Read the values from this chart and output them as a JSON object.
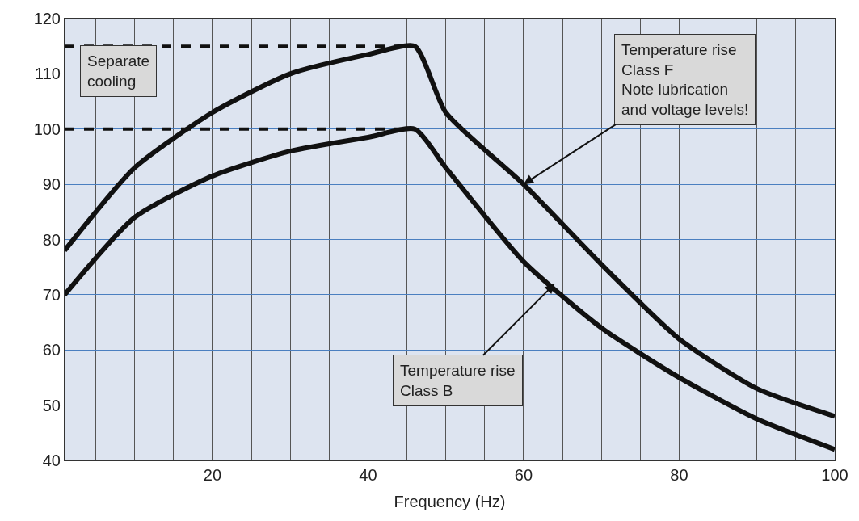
{
  "chart_data": {
    "type": "line",
    "xlabel": "Frequency (Hz)",
    "xlim": [
      1,
      100
    ],
    "xticks": [
      {
        "value": 5,
        "label": null
      },
      {
        "value": 10,
        "label": null
      },
      {
        "value": 15,
        "label": null
      },
      20,
      {
        "value": 25,
        "label": null
      },
      {
        "value": 30,
        "label": null
      },
      {
        "value": 35,
        "label": null
      },
      40,
      {
        "value": 45,
        "label": null
      },
      {
        "value": 50,
        "label": null
      },
      {
        "value": 55,
        "label": null
      },
      60,
      {
        "value": 65,
        "label": null
      },
      {
        "value": 70,
        "label": null
      },
      {
        "value": 75,
        "label": null
      },
      80,
      {
        "value": 85,
        "label": null
      },
      {
        "value": 90,
        "label": null
      },
      {
        "value": 95,
        "label": null
      },
      100
    ],
    "ylim": [
      40,
      120
    ],
    "yticks": [
      40,
      50,
      60,
      70,
      80,
      90,
      100,
      110,
      120
    ],
    "grid": true,
    "series": [
      {
        "color": "#111111",
        "x": [
          1,
          10,
          20,
          30,
          40,
          46,
          50,
          60,
          70,
          80,
          90,
          100
        ],
        "values": [
          78,
          93,
          103,
          110,
          113.5,
          115,
          103,
          90,
          75.5,
          62,
          53,
          48
        ]
      },
      {
        "color": "#111111",
        "x": [
          1,
          10,
          20,
          30,
          40,
          46,
          50,
          60,
          70,
          80,
          90,
          100
        ],
        "values": [
          70,
          84,
          91.5,
          96,
          98.5,
          100,
          93,
          76,
          64,
          55,
          47.5,
          42
        ]
      },
      {
        "color": "#111111",
        "line_style": "dashed",
        "x": [
          1,
          46
        ],
        "values": [
          115,
          115
        ]
      },
      {
        "color": "#111111",
        "line_style": "dashed",
        "x": [
          1,
          46
        ],
        "values": [
          100,
          100
        ]
      }
    ],
    "annotations": [
      "Separate\ncooling",
      {
        "text": "Temperature rise\nClass F\nNote lubrication\nand voltage levels!",
        "x": 60,
        "y": 90
      },
      {
        "text": "Temperature rise\nClass B",
        "x": 64,
        "y": 72
      }
    ]
  }
}
